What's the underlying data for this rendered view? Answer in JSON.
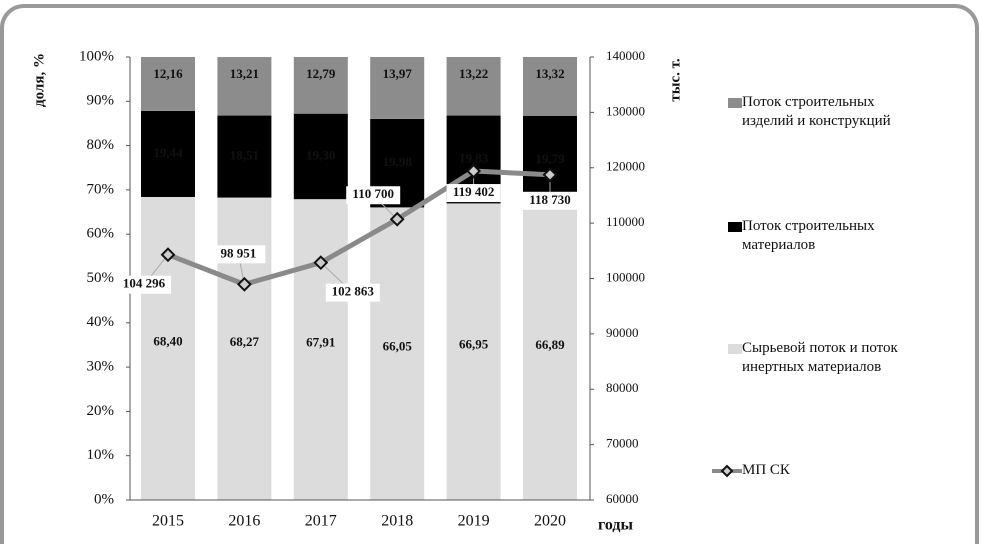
{
  "chart_data": {
    "type": "bar",
    "stacked": true,
    "categories": [
      "2015",
      "2016",
      "2017",
      "2018",
      "2019",
      "2020"
    ],
    "xlabel": "годы",
    "ylabel": "доля, %",
    "y2label": "тыс. т.",
    "ylim": [
      0,
      100
    ],
    "yticks": [
      {
        "value": 0,
        "label": "0%"
      },
      {
        "value": 10,
        "label": "10%"
      },
      {
        "value": 20,
        "label": "20%"
      },
      {
        "value": 30,
        "label": "30%"
      },
      {
        "value": 40,
        "label": "40%"
      },
      {
        "value": 50,
        "label": "50%"
      },
      {
        "value": 60,
        "label": "60%"
      },
      {
        "value": 70,
        "label": "70%"
      },
      {
        "value": 80,
        "label": "80%"
      },
      {
        "value": 90,
        "label": "90%"
      },
      {
        "value": 100,
        "label": "100%"
      }
    ],
    "y2lim": [
      60000,
      140000
    ],
    "y2ticks": [
      60000,
      70000,
      80000,
      90000,
      100000,
      110000,
      120000,
      130000,
      140000
    ],
    "series": [
      {
        "name": "Сырьевой поток и поток инертных материалов",
        "color": "#dcdcdc",
        "label_color": "#111",
        "values": [
          68.4,
          68.27,
          67.91,
          66.05,
          66.95,
          66.89
        ],
        "value_labels": [
          "68,40",
          "68,27",
          "67,91",
          "66,05",
          "66,95",
          "66,89"
        ]
      },
      {
        "name": "Поток строительных материалов",
        "color": "#000000",
        "label_color": "#ffffff",
        "values": [
          19.44,
          18.51,
          19.3,
          19.98,
          19.83,
          19.79
        ],
        "value_labels": [
          "19,44",
          "18,51",
          "19,30",
          "19,98",
          "19,83",
          "19,79"
        ]
      },
      {
        "name": "Поток строительных изделий и конструкций",
        "color": "#8c8c8c",
        "label_color": "#111",
        "values": [
          12.16,
          13.21,
          12.79,
          13.97,
          13.22,
          13.32
        ],
        "value_labels": [
          "12,16",
          "13,21",
          "12,79",
          "13,97",
          "13,22",
          "13,32"
        ]
      },
      {
        "name": "МП СК",
        "type": "line",
        "axis": "y2",
        "color": "#8a8a8a",
        "values": [
          104296,
          98951,
          102863,
          110700,
          119402,
          118730
        ],
        "value_labels": [
          "104 296",
          "98 951",
          "102 863",
          "110 700",
          "119 402",
          "118 730"
        ]
      }
    ]
  }
}
